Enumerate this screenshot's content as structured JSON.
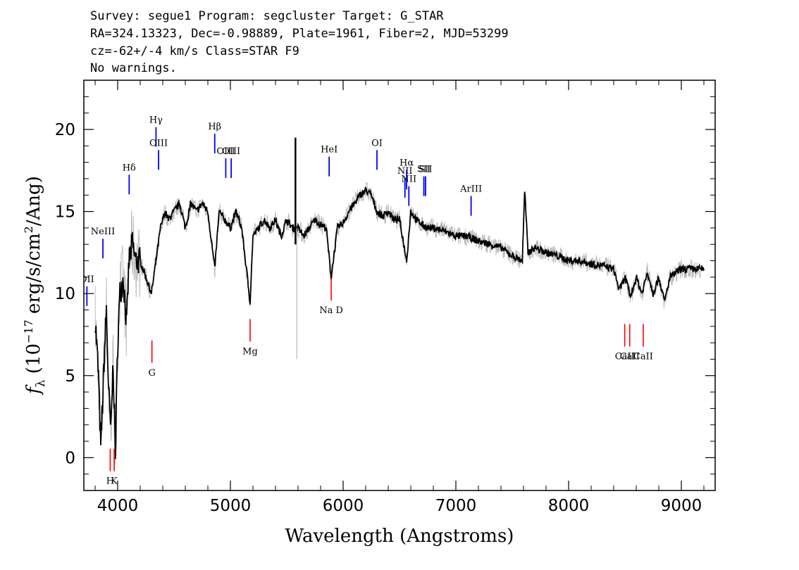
{
  "header": {
    "line1": "Survey: segue1 Program: segcluster Target: G_STAR",
    "line2": "RA=324.13323, Dec=-0.98889, Plate=1961, Fiber=2, MJD=53299",
    "line3": "cz=-62+/-4 km/s Class=STAR F9",
    "line4": "No warnings."
  },
  "chart_data": {
    "type": "line",
    "xlabel": "Wavelength (Angstroms)",
    "ylabel": "f_λ (10^-17 erg/s/cm^2/Ang)",
    "ylabel_parts": {
      "sym": "f",
      "sub": "λ",
      "pre": " (10",
      "exp": "−17",
      "mid": " erg/s/cm",
      "exp2": "2",
      "post": "/Ang)"
    },
    "xlim": [
      3700,
      9300
    ],
    "ylim": [
      -2,
      23
    ],
    "x_ticks": [
      4000,
      5000,
      6000,
      7000,
      8000,
      9000
    ],
    "x_tick_labels": [
      "4000",
      "5000",
      "6000",
      "7000",
      "8000",
      "9000"
    ],
    "y_ticks": [
      0,
      5,
      10,
      15,
      20
    ],
    "y_tick_labels": [
      "0",
      "5",
      "10",
      "15",
      "20"
    ],
    "grid": false,
    "colors": {
      "flux": "#000000",
      "error": "#bbbbbb",
      "emission": "#0000ff",
      "absorption": "#ff0000"
    },
    "series": [
      {
        "x": [
          3800,
          3830,
          3850,
          3870,
          3880,
          3900,
          3920,
          3940,
          3960,
          3980,
          4000,
          4020,
          4050,
          4080,
          4100,
          4130,
          4160,
          4200,
          4250,
          4300,
          4340,
          4380,
          4420,
          4450,
          4500,
          4550,
          4600,
          4650,
          4700,
          4750,
          4800,
          4861,
          4900,
          4950,
          5000,
          5050,
          5100,
          5150,
          5175,
          5200,
          5250,
          5300,
          5350,
          5400,
          5450,
          5500,
          5550,
          5600,
          5650,
          5700,
          5750,
          5800,
          5850,
          5893,
          5950,
          6000,
          6050,
          6100,
          6150,
          6200,
          6250,
          6300,
          6350,
          6400,
          6450,
          6500,
          6563,
          6600,
          6650,
          6700,
          6750,
          6800,
          6900,
          7000,
          7100,
          7200,
          7300,
          7400,
          7500,
          7590,
          7610,
          7640,
          7700,
          7800,
          7900,
          8000,
          8100,
          8200,
          8300,
          8400,
          8450,
          8500,
          8550,
          8600,
          8650,
          8700,
          8750,
          8800,
          8850,
          8900,
          9000,
          9100,
          9200
        ],
        "y": [
          8.5,
          5,
          0.5,
          4,
          6,
          9,
          4,
          1.5,
          6,
          0,
          7,
          10,
          11,
          8,
          12,
          13,
          12,
          12,
          11,
          10,
          12,
          14,
          15,
          14.5,
          15,
          15.5,
          14,
          15.5,
          15,
          15.5,
          15,
          11.5,
          15,
          14.5,
          14,
          15,
          14,
          11,
          9.5,
          13.5,
          14,
          14.5,
          14,
          14.5,
          13.5,
          14.5,
          14,
          14,
          13.5,
          14,
          14.5,
          14.2,
          14,
          11,
          14,
          14.3,
          15,
          15.5,
          16,
          16.3,
          16,
          15,
          14.7,
          15,
          14.5,
          14.5,
          12,
          15,
          14.5,
          14.2,
          14,
          14,
          13.8,
          13.5,
          13.5,
          13.2,
          13,
          12.8,
          12.3,
          12,
          16.3,
          12.5,
          12.8,
          12.5,
          12.3,
          12,
          12,
          11.8,
          11.7,
          11.5,
          10.2,
          11,
          9.8,
          11,
          10,
          11.3,
          10,
          11,
          9.5,
          11,
          11.5,
          11.5,
          11.5
        ]
      }
    ],
    "spikes": [
      {
        "x": 5577,
        "y_from": 13,
        "y_to": 19.5
      },
      {
        "x": 5590,
        "y_from": 14,
        "y_to": 6
      }
    ],
    "emission_lines": [
      {
        "label": "OII",
        "x": 3727,
        "y_label": 10.7
      },
      {
        "label": "NeIII",
        "x": 3869,
        "y_label": 13.6
      },
      {
        "label": "Hδ",
        "x": 4102,
        "y_label": 17.5
      },
      {
        "label": "Hγ",
        "x": 4340,
        "y_label": 20.4
      },
      {
        "label": "OIII",
        "x": 4363,
        "y_label": 19.0
      },
      {
        "label": "Hβ",
        "x": 4861,
        "y_label": 20.0
      },
      {
        "label": "OIII",
        "x": 4959,
        "y_label": 18.5
      },
      {
        "label": "OIII",
        "x": 5007,
        "y_label": 18.5
      },
      {
        "label": "HeI",
        "x": 5876,
        "y_label": 18.6
      },
      {
        "label": "OI",
        "x": 6300,
        "y_label": 19.0
      },
      {
        "label": "NII",
        "x": 6548,
        "y_label": 17.3
      },
      {
        "label": "Hα",
        "x": 6563,
        "y_label": 17.8
      },
      {
        "label": "NII",
        "x": 6583,
        "y_label": 16.8
      },
      {
        "label": "SII",
        "x": 6716,
        "y_label": 17.4
      },
      {
        "label": "SII",
        "x": 6731,
        "y_label": 17.4
      },
      {
        "label": "ArIII",
        "x": 7135,
        "y_label": 16.2
      }
    ],
    "absorption_lines": [
      {
        "label": "H",
        "x": 3934,
        "y_label": -1.6
      },
      {
        "label": "K",
        "x": 3969,
        "y_label": -1.6
      },
      {
        "label": "G",
        "x": 4304,
        "y_label": 5.0
      },
      {
        "label": "Mg",
        "x": 5175,
        "y_label": 6.3
      },
      {
        "label": "Na D",
        "x": 5894,
        "y_label": 8.8
      },
      {
        "label": "CaII",
        "x": 8498,
        "y_label": 6.0
      },
      {
        "label": "CaII",
        "x": 8542,
        "y_label": 6.0
      },
      {
        "label": "CaII",
        "x": 8662,
        "y_label": 6.0
      }
    ]
  }
}
